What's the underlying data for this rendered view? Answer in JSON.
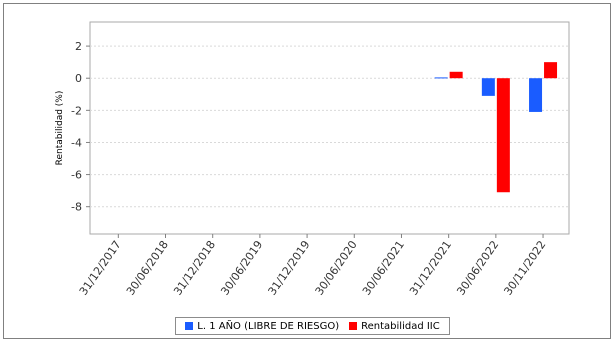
{
  "chart_data": {
    "type": "bar",
    "title": "",
    "xlabel": "",
    "ylabel": "Rentabilidad (%)",
    "ylim": [
      -9.7,
      3.5
    ],
    "yticks": [
      2,
      0,
      -2,
      -4,
      -6,
      -8
    ],
    "grid": true,
    "legend_position": "bottom",
    "categories": [
      "31/12/2017",
      "30/06/2018",
      "31/12/2018",
      "30/06/2019",
      "31/12/2019",
      "30/06/2020",
      "30/06/2021",
      "31/12/2021",
      "30/06/2022",
      "30/11/2022"
    ],
    "series": [
      {
        "name": "L. 1 AÑO (LIBRE DE RIESGO)",
        "color": "#1a5cff",
        "values": [
          null,
          null,
          null,
          null,
          null,
          null,
          null,
          0.05,
          -1.1,
          -2.1
        ]
      },
      {
        "name": "Rentabilidad IIC",
        "color": "#ff0000",
        "values": [
          null,
          null,
          null,
          null,
          null,
          null,
          null,
          0.4,
          -7.1,
          1.0
        ]
      }
    ]
  }
}
